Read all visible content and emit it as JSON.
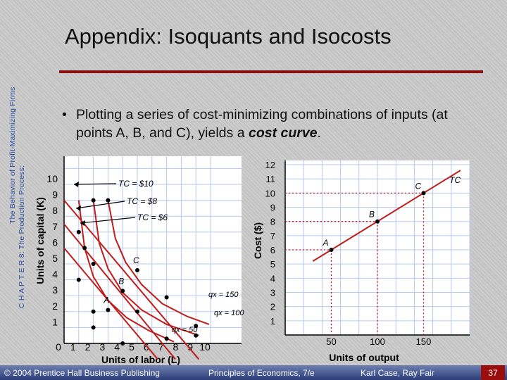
{
  "sidebar": {
    "line1": "C H A P T E R 8: The Production Process:",
    "line2": "The Behavior of Profit-Maximizing Firms"
  },
  "slide": {
    "title": "Appendix:  Isoquants and Isocosts",
    "bullet_pre": "Plotting a series of cost-minimizing combinations of inputs (at points A, B, and C), yields a ",
    "bullet_emph": "cost curve",
    "bullet_post": "."
  },
  "chart_data": [
    {
      "type": "line",
      "xlabel": "Units of labor (L)",
      "ylabel": "Units of capital (K)",
      "xlim": [
        0,
        10
      ],
      "ylim": [
        1,
        10
      ],
      "x_ticks": [
        "0",
        "1",
        "2",
        "3",
        "4",
        "5",
        "6",
        "7",
        "8",
        "9",
        "10"
      ],
      "y_ticks": [
        "1",
        "2",
        "3",
        "4",
        "5",
        "6",
        "7",
        "8",
        "9",
        "10"
      ],
      "isocosts": [
        {
          "name": "TC = $6",
          "from": [
            0,
            7.0
          ],
          "to": [
            6.4,
            0
          ]
        },
        {
          "name": "TC = $8",
          "from": [
            0,
            8.5
          ],
          "to": [
            7.6,
            0
          ]
        },
        {
          "name": "TC = $10",
          "from": [
            0,
            10
          ],
          "to": [
            9.2,
            0
          ]
        }
      ],
      "isoquants": [
        {
          "name": "qx = 50",
          "points": [
            [
              1.0,
              10.0
            ],
            [
              1.4,
              7.0
            ],
            [
              2.0,
              5.2
            ],
            [
              3.0,
              3.7
            ],
            [
              4.3,
              2.6
            ],
            [
              5.8,
              1.8
            ],
            [
              7.5,
              1.1
            ]
          ]
        },
        {
          "name": "qx = 100",
          "points": [
            [
              2.0,
              10.0
            ],
            [
              2.4,
              7.3
            ],
            [
              3.0,
              5.7
            ],
            [
              4.0,
              4.2
            ],
            [
              5.3,
              3.1
            ],
            [
              7.0,
              2.2
            ],
            [
              9.2,
              1.5
            ]
          ]
        },
        {
          "name": "qx = 150",
          "points": [
            [
              3.0,
              10.0
            ],
            [
              3.5,
              7.6
            ],
            [
              4.2,
              6.1
            ],
            [
              5.3,
              4.7
            ],
            [
              6.7,
              3.5
            ],
            [
              8.4,
              2.7
            ],
            [
              9.9,
              2.2
            ]
          ]
        }
      ],
      "points": [
        {
          "label": "A",
          "x": 3.0,
          "y": 3.1
        },
        {
          "label": "B",
          "x": 4.0,
          "y": 4.3
        },
        {
          "label": "C",
          "x": 5.0,
          "y": 5.6
        }
      ],
      "extra_dots": [
        [
          2.0,
          10.0
        ],
        [
          3.0,
          10.0
        ],
        [
          1.0,
          8.0
        ],
        [
          1.4,
          7.0
        ],
        [
          2.0,
          6.0
        ],
        [
          1.0,
          5.0
        ],
        [
          2.0,
          3.0
        ],
        [
          2.0,
          2.0
        ],
        [
          4.0,
          1.0
        ],
        [
          5.0,
          3.0
        ],
        [
          7.0,
          3.9
        ],
        [
          9.0,
          2.1
        ],
        [
          9.0,
          1.5
        ],
        [
          7.0,
          1.3
        ]
      ]
    },
    {
      "type": "line",
      "xlabel": "Units of output",
      "ylabel": "Cost ($)",
      "xlim": [
        0,
        200
      ],
      "ylim": [
        0,
        12
      ],
      "x_ticks": [
        "50",
        "100",
        "150"
      ],
      "y_ticks": [
        "1",
        "2",
        "3",
        "4",
        "5",
        "6",
        "7",
        "8",
        "9",
        "10",
        "11",
        "12"
      ],
      "series": [
        {
          "name": "TC",
          "x": [
            30,
            190
          ],
          "y": [
            5.2,
            11.6
          ]
        }
      ],
      "points": [
        {
          "label": "A",
          "x": 50,
          "y": 6
        },
        {
          "label": "B",
          "x": 100,
          "y": 8
        },
        {
          "label": "C",
          "x": 150,
          "y": 10
        }
      ]
    }
  ],
  "footer": {
    "copyright": "© 2004 Prentice Hall Business Publishing",
    "book": "Principles of Economics, 7/e",
    "authors": "Karl Case, Ray Fair",
    "page": "37"
  }
}
